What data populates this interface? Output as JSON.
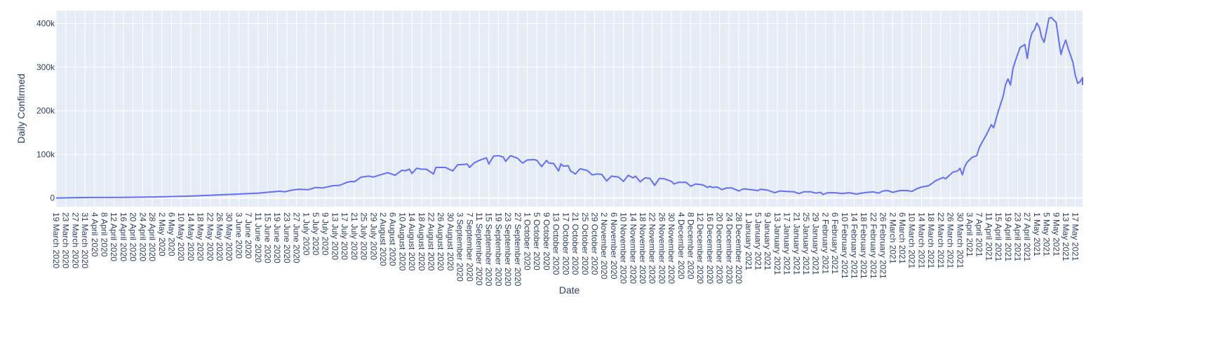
{
  "chart_data": {
    "type": "line",
    "title": "",
    "xlabel": "Date",
    "ylabel": "Daily Confirmed",
    "x_start": "19 March 2020",
    "x_end": "20 May 2021",
    "ylim": [
      -20000,
      430000
    ],
    "y_ticks": [
      0,
      100000,
      200000,
      300000,
      400000
    ],
    "y_tick_labels": [
      "0",
      "100k",
      "200k",
      "300k",
      "400k"
    ],
    "x_tick_labels": [
      "19 March 2020",
      "23 March 2020",
      "27 March 2020",
      "31 March 2020",
      "4 April 2020",
      "8 April 2020",
      "12 April 2020",
      "16 April 2020",
      "20 April 2020",
      "24 April 2020",
      "28 April 2020",
      "2 May 2020",
      "6 May 2020",
      "10 May 2020",
      "14 May 2020",
      "18 May 2020",
      "22 May 2020",
      "26 May 2020",
      "30 May 2020",
      "3 June 2020",
      "7 June 2020",
      "11 June 2020",
      "15 June 2020",
      "19 June 2020",
      "23 June 2020",
      "27 June 2020",
      "1 July 2020",
      "5 July 2020",
      "9 July 2020",
      "13 July 2020",
      "17 July 2020",
      "21 July 2020",
      "25 July 2020",
      "29 July 2020",
      "2 August 2020",
      "6 August 2020",
      "10 August 2020",
      "14 August 2020",
      "18 August 2020",
      "22 August 2020",
      "26 August 2020",
      "30 August 2020",
      "3 September 2020",
      "7 September 2020",
      "11 September 2020",
      "15 September 2020",
      "19 September 2020",
      "23 September 2020",
      "27 September 2020",
      "1 October 2020",
      "5 October 2020",
      "9 October 2020",
      "13 October 2020",
      "17 October 2020",
      "21 October 2020",
      "25 October 2020",
      "29 October 2020",
      "2 November 2020",
      "6 November 2020",
      "10 November 2020",
      "14 November 2020",
      "18 November 2020",
      "22 November 2020",
      "26 November 2020",
      "30 November 2020",
      "4 December 2020",
      "8 December 2020",
      "12 December 2020",
      "16 December 2020",
      "20 December 2020",
      "24 December 2020",
      "28 December 2020",
      "1 January 2021",
      "5 January 2021",
      "9 January 2021",
      "13 January 2021",
      "17 January 2021",
      "21 January 2021",
      "25 January 2021",
      "29 January 2021",
      "2 February 2021",
      "6 February 2021",
      "10 February 2021",
      "14 February 2021",
      "18 February 2021",
      "22 February 2021",
      "26 February 2021",
      "2 March 2021",
      "6 March 2021",
      "10 March 2021",
      "14 March 2021",
      "18 March 2021",
      "22 March 2021",
      "26 March 2021",
      "30 March 2021",
      "3 April 2021",
      "7 April 2021",
      "11 April 2021",
      "15 April 2021",
      "19 April 2021",
      "23 April 2021",
      "27 April 2021",
      "1 May 2021",
      "5 May 2021",
      "9 May 2021",
      "13 May 2021",
      "17 May 2021"
    ],
    "grid": true,
    "legend": "none",
    "colors": {
      "line": "#636efa",
      "plot_bg": "#e5ecf6",
      "grid": "#ffffff",
      "text": "#2a3f5f"
    },
    "series": [
      {
        "points": [
          [
            "19 March 2020",
            0
          ],
          [
            "1 April 2020",
            1000
          ],
          [
            "15 April 2020",
            1200
          ],
          [
            "1 May 2020",
            2500
          ],
          [
            "15 May 2020",
            4500
          ],
          [
            "1 June 2020",
            8500
          ],
          [
            "11 June 2020",
            11000
          ],
          [
            "20 June 2020",
            15500
          ],
          [
            "22 June 2020",
            14000
          ],
          [
            "25 June 2020",
            18000
          ],
          [
            "28 June 2020",
            20000
          ],
          [
            "2 July 2020",
            19000
          ],
          [
            "5 July 2020",
            24000
          ],
          [
            "8 July 2020",
            23000
          ],
          [
            "12 July 2020",
            28000
          ],
          [
            "15 July 2020",
            29000
          ],
          [
            "18 July 2020",
            36000
          ],
          [
            "20 July 2020",
            38000
          ],
          [
            "21 July 2020",
            37000
          ],
          [
            "24 July 2020",
            48000
          ],
          [
            "27 July 2020",
            50000
          ],
          [
            "29 July 2020",
            48000
          ],
          [
            "2 August 2020",
            55000
          ],
          [
            "4 August 2020",
            58000
          ],
          [
            "7 August 2020",
            52000
          ],
          [
            "8 August 2020",
            56000
          ],
          [
            "10 August 2020",
            64000
          ],
          [
            "11 August 2020",
            62000
          ],
          [
            "13 August 2020",
            66000
          ],
          [
            "14 August 2020",
            56000
          ],
          [
            "16 August 2020",
            68000
          ],
          [
            "18 August 2020",
            66000
          ],
          [
            "20 August 2020",
            66000
          ],
          [
            "23 August 2020",
            55000
          ],
          [
            "24 August 2020",
            70000
          ],
          [
            "28 August 2020",
            70000
          ],
          [
            "31 August 2020",
            62000
          ],
          [
            "2 September 2020",
            76000
          ],
          [
            "5 September 2020",
            77000
          ],
          [
            "6 September 2020",
            78000
          ],
          [
            "7 September 2020",
            70000
          ],
          [
            "9 September 2020",
            81000
          ],
          [
            "11 September 2020",
            86000
          ],
          [
            "14 September 2020",
            92000
          ],
          [
            "15 September 2020",
            78000
          ],
          [
            "17 September 2020",
            96000
          ],
          [
            "19 September 2020",
            97000
          ],
          [
            "21 September 2020",
            94000
          ],
          [
            "22 September 2020",
            84000
          ],
          [
            "24 September 2020",
            97000
          ],
          [
            "26 September 2020",
            93000
          ],
          [
            "27 September 2020",
            91000
          ],
          [
            "29 September 2020",
            80000
          ],
          [
            "1 October 2020",
            87000
          ],
          [
            "4 October 2020",
            88000
          ],
          [
            "5 October 2020",
            86000
          ],
          [
            "7 October 2020",
            72000
          ],
          [
            "9 October 2020",
            86000
          ],
          [
            "10 October 2020",
            80000
          ],
          [
            "12 October 2020",
            79000
          ],
          [
            "14 October 2020",
            62000
          ],
          [
            "15 October 2020",
            78000
          ],
          [
            "16 October 2020",
            73000
          ],
          [
            "18 October 2020",
            74000
          ],
          [
            "19 October 2020",
            62000
          ],
          [
            "21 October 2020",
            55000
          ],
          [
            "23 October 2020",
            67000
          ],
          [
            "26 October 2020",
            63000
          ],
          [
            "28 October 2020",
            53000
          ],
          [
            "30 October 2020",
            55000
          ],
          [
            "1 November 2020",
            54000
          ],
          [
            "3 November 2020",
            39000
          ],
          [
            "5 November 2020",
            50000
          ],
          [
            "8 November 2020",
            48000
          ],
          [
            "10 November 2020",
            38000
          ],
          [
            "12 November 2020",
            52000
          ],
          [
            "14 November 2020",
            46000
          ],
          [
            "15 November 2020",
            50000
          ],
          [
            "17 November 2020",
            37000
          ],
          [
            "19 November 2020",
            46000
          ],
          [
            "21 November 2020",
            45000
          ],
          [
            "23 November 2020",
            29000
          ],
          [
            "25 November 2020",
            45000
          ],
          [
            "27 November 2020",
            44000
          ],
          [
            "30 November 2020",
            38000
          ],
          [
            "1 December 2020",
            32000
          ],
          [
            "3 December 2020",
            36000
          ],
          [
            "6 December 2020",
            36000
          ],
          [
            "8 December 2020",
            27000
          ],
          [
            "10 December 2020",
            32000
          ],
          [
            "13 December 2020",
            30000
          ],
          [
            "15 December 2020",
            24000
          ],
          [
            "16 December 2020",
            27000
          ],
          [
            "17 December 2020",
            24000
          ],
          [
            "19 December 2020",
            25000
          ],
          [
            "21 December 2020",
            19000
          ],
          [
            "23 December 2020",
            23000
          ],
          [
            "25 December 2020",
            23000
          ],
          [
            "28 December 2020",
            16000
          ],
          [
            "30 December 2020",
            21000
          ],
          [
            "2 January 2021",
            19000
          ],
          [
            "5 January 2021",
            17000
          ],
          [
            "6 January 2021",
            20000
          ],
          [
            "9 January 2021",
            18000
          ],
          [
            "12 January 2021",
            12000
          ],
          [
            "14 January 2021",
            16000
          ],
          [
            "17 January 2021",
            15000
          ],
          [
            "20 January 2021",
            14000
          ],
          [
            "22 January 2021",
            10000
          ],
          [
            "24 January 2021",
            14000
          ],
          [
            "27 January 2021",
            14000
          ],
          [
            "29 January 2021",
            11000
          ],
          [
            "31 January 2021",
            13000
          ],
          [
            "1 February 2021",
            8000
          ],
          [
            "3 February 2021",
            12000
          ],
          [
            "6 February 2021",
            12000
          ],
          [
            "9 February 2021",
            10000
          ],
          [
            "12 February 2021",
            12000
          ],
          [
            "15 February 2021",
            9000
          ],
          [
            "18 February 2021",
            12000
          ],
          [
            "22 February 2021",
            14000
          ],
          [
            "24 February 2021",
            11000
          ],
          [
            "26 February 2021",
            16000
          ],
          [
            "28 February 2021",
            17000
          ],
          [
            "2 March 2021",
            13000
          ],
          [
            "5 March 2021",
            17000
          ],
          [
            "8 March 2021",
            17000
          ],
          [
            "10 March 2021",
            15000
          ],
          [
            "12 March 2021",
            21000
          ],
          [
            "14 March 2021",
            25000
          ],
          [
            "17 March 2021",
            28000
          ],
          [
            "20 March 2021",
            40000
          ],
          [
            "23 March 2021",
            47000
          ],
          [
            "24 March 2021",
            44000
          ],
          [
            "27 March 2021",
            59000
          ],
          [
            "29 March 2021",
            62000
          ],
          [
            "30 March 2021",
            68000
          ],
          [
            "31 March 2021",
            53000
          ],
          [
            "1 April 2021",
            72000
          ],
          [
            "2 April 2021",
            82000
          ],
          [
            "4 April 2021",
            93000
          ],
          [
            "6 April 2021",
            97000
          ],
          [
            "7 April 2021",
            115000
          ],
          [
            "8 April 2021",
            126000
          ],
          [
            "10 April 2021",
            145000
          ],
          [
            "12 April 2021",
            168000
          ],
          [
            "13 April 2021",
            161000
          ],
          [
            "15 April 2021",
            200000
          ],
          [
            "17 April 2021",
            234000
          ],
          [
            "18 April 2021",
            261000
          ],
          [
            "19 April 2021",
            273000
          ],
          [
            "20 April 2021",
            259000
          ],
          [
            "21 April 2021",
            295000
          ],
          [
            "22 April 2021",
            314000
          ],
          [
            "24 April 2021",
            345000
          ],
          [
            "26 April 2021",
            352000
          ],
          [
            "27 April 2021",
            320000
          ],
          [
            "28 April 2021",
            360000
          ],
          [
            "29 April 2021",
            379000
          ],
          [
            "30 April 2021",
            386000
          ],
          [
            "1 May 2021",
            401000
          ],
          [
            "2 May 2021",
            392000
          ],
          [
            "3 May 2021",
            368000
          ],
          [
            "4 May 2021",
            357000
          ],
          [
            "5 May 2021",
            383000
          ],
          [
            "6 May 2021",
            412000
          ],
          [
            "7 May 2021",
            414000
          ],
          [
            "8 May 2021",
            408000
          ],
          [
            "9 May 2021",
            403000
          ],
          [
            "10 May 2021",
            366000
          ],
          [
            "11 May 2021",
            329000
          ],
          [
            "12 May 2021",
            348000
          ],
          [
            "13 May 2021",
            362000
          ],
          [
            "14 May 2021",
            343000
          ],
          [
            "16 May 2021",
            311000
          ],
          [
            "17 May 2021",
            281000
          ],
          [
            "18 May 2021",
            263000
          ],
          [
            "19 May 2021",
            267000
          ],
          [
            "20 May 2021",
            276000
          ],
          [
            "21 May 2021",
            259000
          ]
        ]
      }
    ]
  }
}
